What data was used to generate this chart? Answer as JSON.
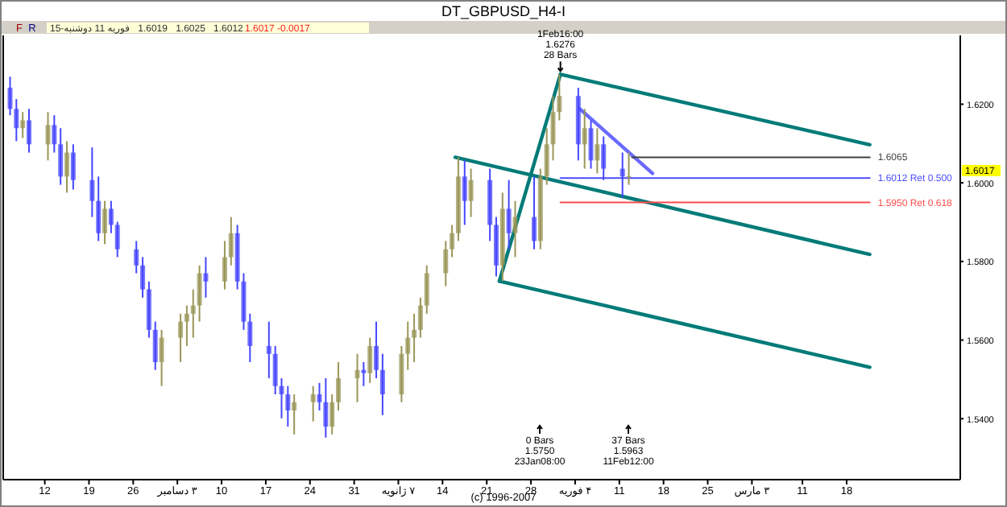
{
  "chart_data": {
    "type": "candlestick",
    "title": "DT_GBPUSD_H4-I",
    "xlim": [
      "2007-11-05T10:00",
      "2008-04-05T00:00"
    ],
    "ylim": [
      1.5245,
      1.6375
    ],
    "xticks": [
      {
        "value": "2007-11-12",
        "label": "12"
      },
      {
        "value": "2007-11-19",
        "label": "19"
      },
      {
        "value": "2007-11-26",
        "label": "26"
      },
      {
        "value": "2007-12-03",
        "label": "۳ دسامبر"
      },
      {
        "value": "2007-12-10",
        "label": "10"
      },
      {
        "value": "2007-12-17",
        "label": "17"
      },
      {
        "value": "2007-12-24",
        "label": "24"
      },
      {
        "value": "2007-12-31",
        "label": "31"
      },
      {
        "value": "2008-01-07",
        "label": "۷ ژانویه"
      },
      {
        "value": "2008-01-14",
        "label": "14"
      },
      {
        "value": "2008-01-21",
        "label": "21"
      },
      {
        "value": "2008-01-28",
        "label": "28"
      },
      {
        "value": "2008-02-04",
        "label": "۴ فوریه"
      },
      {
        "value": "2008-02-11",
        "label": "11"
      },
      {
        "value": "2008-02-18",
        "label": "18"
      },
      {
        "value": "2008-02-25",
        "label": "25"
      },
      {
        "value": "2008-03-03",
        "label": "۳ مارس"
      },
      {
        "value": "2008-03-11",
        "label": "11"
      },
      {
        "value": "2008-03-18",
        "label": "18"
      }
    ],
    "yticks": [
      {
        "value": 1.54,
        "label": "1.5400"
      },
      {
        "value": 1.56,
        "label": "1.5600"
      },
      {
        "value": 1.58,
        "label": "1.5800"
      },
      {
        "value": 1.6,
        "label": "1.6000"
      },
      {
        "value": 1.62,
        "label": "1.6200"
      }
    ],
    "legend": false,
    "grid": false,
    "series": [
      {
        "color": "#9a9658",
        "x": [
          "2007-11-08T12:00",
          "2007-11-12T12:00",
          "2007-11-15T12:00",
          "2007-11-21T12:00",
          "2007-11-30T12:00",
          "2007-12-03T12:00",
          "2007-12-04T12:00",
          "2007-12-05T12:00",
          "2007-12-06T12:00",
          "2007-12-10T12:00",
          "2007-12-11T12:00",
          "2007-12-21T12:00",
          "2007-12-24T12:00",
          "2007-12-27T12:00",
          "2007-12-28T12:00",
          "2007-12-31T12:00",
          "2008-01-02T12:00",
          "2008-01-07T12:00",
          "2008-01-08T12:00",
          "2008-01-09T12:00",
          "2008-01-10T12:00",
          "2008-01-11T12:00",
          "2008-01-14T12:00",
          "2008-01-15T12:00",
          "2008-01-16T12:00",
          "2008-01-18T12:00",
          "2008-01-23T12:00",
          "2008-01-25T12:00",
          "2008-01-29T12:00",
          "2008-01-30T12:00",
          "2008-01-31T12:00",
          "2008-02-01T12:00",
          "2008-02-05T12:00",
          "2008-02-07T12:00",
          "2008-02-12T12:00"
        ],
        "ohlc": [
          [
            1.6139,
            1.618,
            1.6114,
            1.6159
          ],
          [
            1.6098,
            1.618,
            1.6057,
            1.6147
          ],
          [
            1.6016,
            1.6106,
            1.5975,
            1.6077
          ],
          [
            1.5872,
            1.5954,
            1.5844,
            1.5934
          ],
          [
            1.5544,
            1.5626,
            1.5483,
            1.5606
          ],
          [
            1.5606,
            1.5667,
            1.5544,
            1.5647
          ],
          [
            1.5647,
            1.5688,
            1.5585,
            1.5667
          ],
          [
            1.5667,
            1.5729,
            1.5606,
            1.5688
          ],
          [
            1.5688,
            1.579,
            1.5647,
            1.577
          ],
          [
            1.5749,
            1.5852,
            1.5729,
            1.5811
          ],
          [
            1.5811,
            1.5913,
            1.579,
            1.5872
          ],
          [
            1.5421,
            1.5462,
            1.536,
            1.5442
          ],
          [
            1.5442,
            1.5483,
            1.5393,
            1.5462
          ],
          [
            1.538,
            1.5462,
            1.536,
            1.5442
          ],
          [
            1.5442,
            1.5544,
            1.5421,
            1.5503
          ],
          [
            1.5503,
            1.5565,
            1.5442,
            1.5524
          ],
          [
            1.5516,
            1.5606,
            1.5491,
            1.5585
          ],
          [
            1.5462,
            1.5585,
            1.5442,
            1.5565
          ],
          [
            1.5565,
            1.5647,
            1.5524,
            1.5606
          ],
          [
            1.5606,
            1.5667,
            1.5544,
            1.5626
          ],
          [
            1.5626,
            1.5708,
            1.5606,
            1.5688
          ],
          [
            1.5688,
            1.579,
            1.5667,
            1.577
          ],
          [
            1.577,
            1.5852,
            1.5737,
            1.5831
          ],
          [
            1.5831,
            1.5893,
            1.5811,
            1.5872
          ],
          [
            1.5872,
            1.6065,
            1.5852,
            1.6016
          ],
          [
            1.5954,
            1.6036,
            1.5913,
            1.6007
          ],
          [
            1.579,
            1.5975,
            1.575,
            1.5934
          ],
          [
            1.5872,
            1.5954,
            1.5811,
            1.5913
          ],
          [
            1.5852,
            1.6036,
            1.5831,
            1.6016
          ],
          [
            1.6016,
            1.6139,
            1.5995,
            1.6098
          ],
          [
            1.6098,
            1.6221,
            1.6057,
            1.618
          ],
          [
            1.618,
            1.6276,
            1.6159,
            1.6221
          ],
          [
            1.6098,
            1.6188,
            1.6036,
            1.6139
          ],
          [
            1.6057,
            1.6139,
            1.6024,
            1.6098
          ],
          [
            1.6016,
            1.6077,
            1.5995,
            1.6017
          ]
        ]
      },
      {
        "color": "#4646ff",
        "x": [
          "2007-11-06T12:00",
          "2007-11-07T12:00",
          "2007-11-09T12:00",
          "2007-11-13T12:00",
          "2007-11-14T12:00",
          "2007-11-16T12:00",
          "2007-11-19T12:00",
          "2007-11-20T12:00",
          "2007-11-22T12:00",
          "2007-11-23T12:00",
          "2007-11-26T12:00",
          "2007-11-27T12:00",
          "2007-11-28T12:00",
          "2007-11-29T12:00",
          "2007-12-07T12:00",
          "2007-12-12T12:00",
          "2007-12-13T12:00",
          "2007-12-14T12:00",
          "2007-12-17T12:00",
          "2007-12-18T12:00",
          "2007-12-19T12:00",
          "2007-12-20T12:00",
          "2007-12-25T12:00",
          "2007-12-26T12:00",
          "2008-01-01T12:00",
          "2008-01-03T12:00",
          "2008-01-04T12:00",
          "2008-01-17T12:00",
          "2008-01-21T12:00",
          "2008-01-22T12:00",
          "2008-01-24T12:00",
          "2008-01-28T12:00",
          "2008-02-04T12:00",
          "2008-02-06T12:00",
          "2008-02-08T12:00",
          "2008-02-11T12:00"
        ],
        "ohlc": [
          [
            1.6242,
            1.627,
            1.6172,
            1.6188
          ],
          [
            1.6188,
            1.6213,
            1.6106,
            1.6139
          ],
          [
            1.6159,
            1.6188,
            1.6077,
            1.6098
          ],
          [
            1.6147,
            1.6172,
            1.6077,
            1.6098
          ],
          [
            1.6098,
            1.6139,
            1.5995,
            1.6016
          ],
          [
            1.6077,
            1.6098,
            1.5983,
            1.6007
          ],
          [
            1.6007,
            1.609,
            1.5913,
            1.5954
          ],
          [
            1.5954,
            1.6016,
            1.5852,
            1.5872
          ],
          [
            1.5934,
            1.5954,
            1.5872,
            1.5893
          ],
          [
            1.5893,
            1.5901,
            1.5811,
            1.5831
          ],
          [
            1.5831,
            1.5852,
            1.577,
            1.579
          ],
          [
            1.579,
            1.5811,
            1.5708,
            1.5729
          ],
          [
            1.5729,
            1.5749,
            1.5606,
            1.5626
          ],
          [
            1.5626,
            1.5647,
            1.5524,
            1.5544
          ],
          [
            1.577,
            1.5811,
            1.5708,
            1.5749
          ],
          [
            1.5872,
            1.5893,
            1.5729,
            1.5749
          ],
          [
            1.5749,
            1.577,
            1.5626,
            1.5647
          ],
          [
            1.5647,
            1.5667,
            1.5544,
            1.5585
          ],
          [
            1.5585,
            1.5647,
            1.5503,
            1.5565
          ],
          [
            1.5565,
            1.5585,
            1.5462,
            1.5483
          ],
          [
            1.5483,
            1.5503,
            1.5401,
            1.5462
          ],
          [
            1.5462,
            1.5483,
            1.538,
            1.5421
          ],
          [
            1.5462,
            1.5491,
            1.5421,
            1.5442
          ],
          [
            1.5442,
            1.5503,
            1.5352,
            1.538
          ],
          [
            1.5524,
            1.5544,
            1.5483,
            1.5516
          ],
          [
            1.5585,
            1.5647,
            1.5503,
            1.5524
          ],
          [
            1.5524,
            1.5565,
            1.5409,
            1.5462
          ],
          [
            1.6016,
            1.6057,
            1.5893,
            1.5954
          ],
          [
            1.6007,
            1.6036,
            1.5852,
            1.5893
          ],
          [
            1.5893,
            1.5913,
            1.5762,
            1.579
          ],
          [
            1.5934,
            1.6007,
            1.5831,
            1.5872
          ],
          [
            1.5913,
            1.6016,
            1.5831,
            1.5852
          ],
          [
            1.6221,
            1.6242,
            1.6057,
            1.6098
          ],
          [
            1.6139,
            1.6159,
            1.6036,
            1.6057
          ],
          [
            1.6098,
            1.6118,
            1.6007,
            1.6036
          ],
          [
            1.6036,
            1.6077,
            1.5963,
            1.6016
          ]
        ]
      },
      {
        "type": "line",
        "color": "#007b78",
        "x": [
          "2008-02-01T16:00",
          "2008-03-21T16:00"
        ],
        "values": [
          1.6276,
          1.6097
        ]
      },
      {
        "type": "line",
        "color": "#007b78",
        "x": [
          "2008-01-16T00:00",
          "2008-03-21T16:00"
        ],
        "values": [
          1.6065,
          1.5818
        ]
      },
      {
        "type": "line",
        "color": "#007b78",
        "x": [
          "2008-01-23T00:00",
          "2008-03-21T16:00"
        ],
        "values": [
          1.575,
          1.5531
        ]
      },
      {
        "type": "line",
        "color": "#007b78",
        "x": [
          "2008-01-23T00:00",
          "2008-02-01T16:00"
        ],
        "values": [
          1.575,
          1.6276
        ]
      },
      {
        "type": "line",
        "color": "#6a6aff",
        "x": [
          "2008-02-04T18:00",
          "2008-02-16T06:00"
        ],
        "values": [
          1.6188,
          1.6024
        ]
      },
      {
        "type": "line",
        "name": "1.6065",
        "color": "#404040",
        "x": [
          "2008-02-13T00:00",
          "2008-03-21T16:00"
        ],
        "values": [
          1.6065,
          1.6065
        ]
      },
      {
        "type": "line",
        "name": "1.6012 Ret 0.500",
        "color": "#4b4bff",
        "x": [
          "2008-02-01T16:00",
          "2008-03-21T16:00"
        ],
        "values": [
          1.6012,
          1.6012
        ]
      },
      {
        "type": "line",
        "name": "1.5950 Ret 0.618",
        "color": "#ff4b4b",
        "x": [
          "2008-02-01T16:00",
          "2008-03-21T16:00"
        ],
        "values": [
          1.595,
          1.595
        ]
      }
    ],
    "annotations": [
      "F",
      "R",
      "15-دوشنبه 11 فوریه   1.6019   1.6025   1.6012",
      "1.6017   -0.0017",
      "(c) 1996-2007",
      "1.6017",
      {
        "text": "1Feb16:00\n1.6276\n28 Bars",
        "x": "2008-02-01T16:00",
        "y": 1.6276
      },
      "0 Bars\n1.5750\n23Jan08:00",
      "37 Bars\n1.5963\n11Feb12:00"
    ]
  }
}
